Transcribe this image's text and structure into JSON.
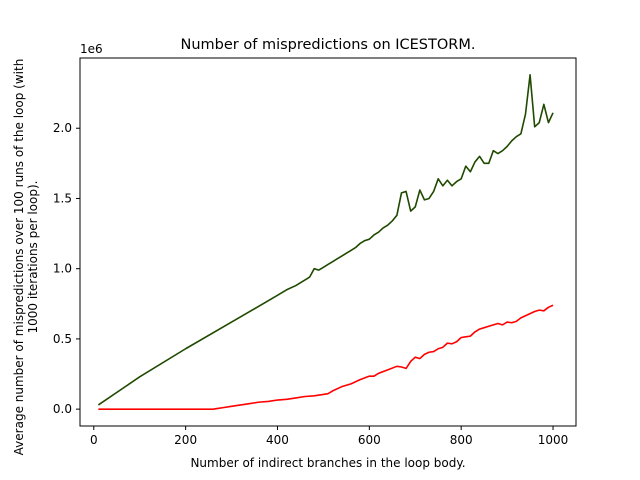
{
  "chart_data": {
    "type": "line",
    "title": "Number of mispredictions on ICESTORM.",
    "xlabel": "Number of indirect branches in the loop body.",
    "ylabel_lines": [
      "Average number of mispredictions over 100 runs of the loop (with",
      "1000 iterations per loop)."
    ],
    "y_offset_label": "1e6",
    "xlim": [
      -30,
      1050
    ],
    "ylim": [
      -0.12,
      2.5
    ],
    "xticks": [
      0,
      200,
      400,
      600,
      800,
      1000
    ],
    "xtick_labels": [
      "0",
      "200",
      "400",
      "600",
      "800",
      "1000"
    ],
    "yticks": [
      0.0,
      0.5,
      1.0,
      1.5,
      2.0
    ],
    "ytick_labels": [
      "0.0",
      "0.5",
      "1.0",
      "1.5",
      "2.0"
    ],
    "grid": false,
    "legend": "none",
    "series": [
      {
        "color": "#1f4a00",
        "x": [
          10,
          100,
          200,
          300,
          400,
          420,
          440,
          460,
          470,
          480,
          490,
          500,
          510,
          520,
          530,
          540,
          550,
          560,
          570,
          580,
          590,
          600,
          610,
          620,
          630,
          640,
          650,
          660,
          670,
          680,
          690,
          700,
          710,
          720,
          730,
          740,
          750,
          760,
          770,
          780,
          790,
          800,
          810,
          820,
          830,
          840,
          850,
          860,
          870,
          880,
          890,
          900,
          910,
          920,
          930,
          940,
          950,
          960,
          970,
          980,
          990,
          1000
        ],
        "y": [
          0.03,
          0.23,
          0.43,
          0.62,
          0.81,
          0.85,
          0.88,
          0.92,
          0.94,
          1.0,
          0.99,
          1.01,
          1.03,
          1.05,
          1.07,
          1.09,
          1.11,
          1.13,
          1.15,
          1.18,
          1.2,
          1.21,
          1.24,
          1.26,
          1.29,
          1.31,
          1.34,
          1.38,
          1.54,
          1.55,
          1.41,
          1.44,
          1.56,
          1.49,
          1.5,
          1.55,
          1.64,
          1.59,
          1.63,
          1.59,
          1.62,
          1.64,
          1.73,
          1.69,
          1.76,
          1.8,
          1.75,
          1.75,
          1.84,
          1.82,
          1.84,
          1.87,
          1.91,
          1.94,
          1.96,
          2.1,
          2.38,
          2.01,
          2.04,
          2.17,
          2.04,
          2.11
        ]
      },
      {
        "color": "#ff0000",
        "x": [
          10,
          100,
          200,
          260,
          270,
          280,
          300,
          320,
          340,
          360,
          380,
          400,
          420,
          440,
          460,
          480,
          500,
          510,
          520,
          540,
          560,
          580,
          600,
          610,
          620,
          640,
          660,
          670,
          680,
          690,
          700,
          710,
          720,
          730,
          740,
          750,
          760,
          770,
          780,
          790,
          800,
          810,
          820,
          830,
          840,
          850,
          860,
          870,
          880,
          890,
          900,
          910,
          920,
          930,
          940,
          950,
          960,
          970,
          980,
          990,
          1000
        ],
        "y": [
          0.0,
          0.0,
          0.0,
          0.0,
          0.005,
          0.01,
          0.02,
          0.03,
          0.04,
          0.05,
          0.055,
          0.065,
          0.07,
          0.08,
          0.09,
          0.095,
          0.105,
          0.11,
          0.13,
          0.16,
          0.18,
          0.21,
          0.235,
          0.235,
          0.255,
          0.28,
          0.305,
          0.3,
          0.29,
          0.34,
          0.37,
          0.36,
          0.39,
          0.405,
          0.41,
          0.43,
          0.44,
          0.47,
          0.465,
          0.48,
          0.51,
          0.515,
          0.52,
          0.55,
          0.57,
          0.58,
          0.59,
          0.6,
          0.61,
          0.6,
          0.62,
          0.615,
          0.625,
          0.65,
          0.665,
          0.68,
          0.695,
          0.705,
          0.7,
          0.725,
          0.74
        ]
      }
    ]
  }
}
